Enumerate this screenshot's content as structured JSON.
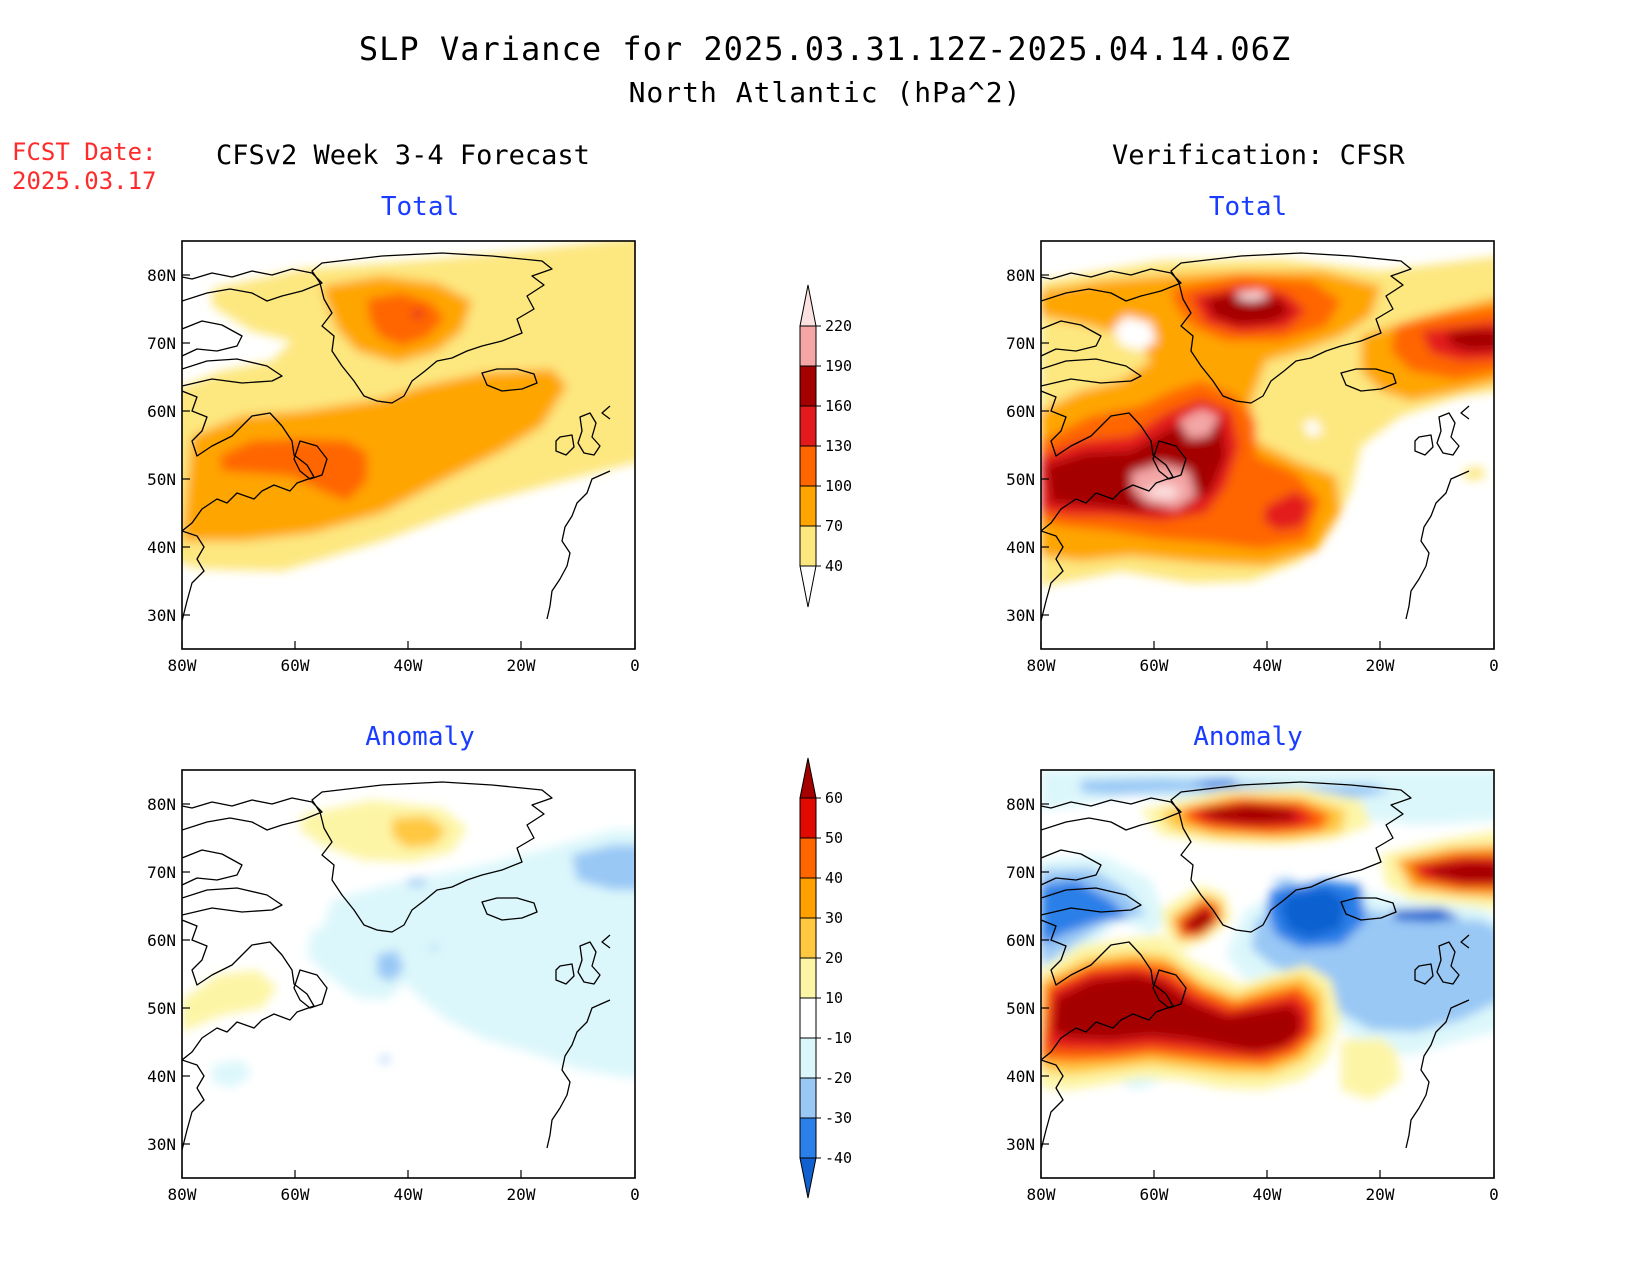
{
  "header": {
    "title": "SLP Variance for 2025.03.31.12Z-2025.04.14.06Z",
    "subtitle": "North Atlantic (hPa^2)",
    "fcst_label": "FCST Date:",
    "fcst_date": "2025.03.17"
  },
  "columns": {
    "left": "CFSv2 Week 3-4 Forecast",
    "right": "Verification: CFSR"
  },
  "panels": {
    "top_left": "Total",
    "top_right": "Total",
    "bottom_left": "Anomaly",
    "bottom_right": "Anomaly"
  },
  "axes": {
    "lat_labels": [
      "80N",
      "70N",
      "60N",
      "50N",
      "40N",
      "30N"
    ],
    "lon_labels": [
      "80W",
      "60W",
      "40W",
      "20W",
      "0"
    ]
  },
  "colorbars": {
    "total": {
      "labels": [
        "40",
        "70",
        "100",
        "130",
        "160",
        "190",
        "220"
      ],
      "colors": [
        "#fde77f",
        "#ffa500",
        "#ff6600",
        "#e31a1c",
        "#a50000",
        "#f4a6a6",
        "#fce1e1"
      ]
    },
    "anomaly": {
      "labels": [
        "-40",
        "-30",
        "-20",
        "-10",
        "10",
        "20",
        "30",
        "40",
        "50",
        "60"
      ],
      "colors": [
        "#1060d0",
        "#2a7fe8",
        "#99c8f5",
        "#dcf7fb",
        "#ffffff",
        "#fdf5a6",
        "#ffc840",
        "#ffa000",
        "#ff6600",
        "#e00a00",
        "#a50000"
      ]
    }
  }
}
